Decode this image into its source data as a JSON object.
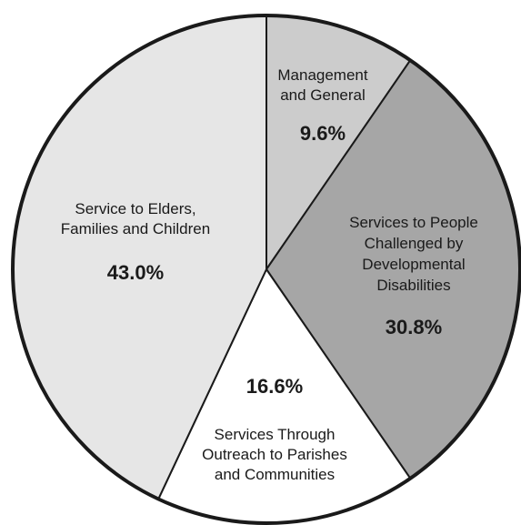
{
  "chart_data": {
    "type": "pie",
    "slices": [
      {
        "label_lines": [
          "Management",
          "and General"
        ],
        "value": 9.6,
        "value_label": "9.6%",
        "color": "#cccccc"
      },
      {
        "label_lines": [
          "Services to People",
          "Challenged by",
          "Developmental",
          "Disabilities"
        ],
        "value": 30.8,
        "value_label": "30.8%",
        "color": "#a6a6a6"
      },
      {
        "label_lines": [
          "Services Through",
          "Outreach to Parishes",
          "and Communities"
        ],
        "value": 16.6,
        "value_label": "16.6%",
        "color": "#ffffff"
      },
      {
        "label_lines": [
          "Service to Elders,",
          "Families and Children"
        ],
        "value": 43.0,
        "value_label": "43.0%",
        "color": "#e6e6e6"
      }
    ],
    "start_angle": "12 o'clock",
    "direction": "clockwise",
    "outline_color": "#1a1a1a",
    "legend": "none"
  }
}
